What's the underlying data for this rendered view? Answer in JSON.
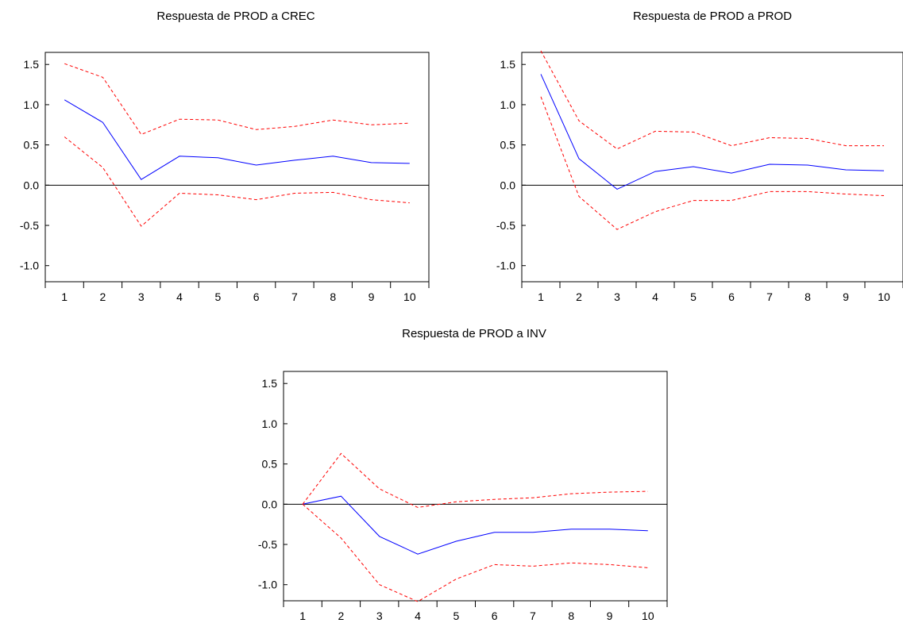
{
  "chart_data": [
    {
      "type": "line",
      "title": "Respuesta de PROD a CREC",
      "xlabel": "",
      "ylabel": "",
      "x": [
        1,
        2,
        3,
        4,
        5,
        6,
        7,
        8,
        9,
        10
      ],
      "xticks": [
        "1",
        "2",
        "3",
        "4",
        "5",
        "6",
        "7",
        "8",
        "9",
        "10"
      ],
      "yticks": [
        "-1.0",
        "-0.5",
        "0.0",
        "0.5",
        "1.0",
        "1.5"
      ],
      "ylim": [
        -1.2,
        1.65
      ],
      "series": [
        {
          "values": [
            1.06,
            0.78,
            0.07,
            0.36,
            0.34,
            0.25,
            0.31,
            0.36,
            0.28,
            0.27
          ],
          "color": "#0000ff",
          "style": "solid"
        },
        {
          "values": [
            1.51,
            1.34,
            0.63,
            0.82,
            0.81,
            0.69,
            0.73,
            0.81,
            0.75,
            0.77
          ],
          "color": "#ff0000",
          "style": "dashed"
        },
        {
          "values": [
            0.6,
            0.22,
            -0.51,
            -0.1,
            -0.12,
            -0.18,
            -0.1,
            -0.09,
            -0.18,
            -0.22
          ],
          "color": "#ff0000",
          "style": "dashed"
        }
      ]
    },
    {
      "type": "line",
      "title": "Respuesta de PROD a PROD",
      "xlabel": "",
      "ylabel": "",
      "x": [
        1,
        2,
        3,
        4,
        5,
        6,
        7,
        8,
        9,
        10
      ],
      "xticks": [
        "1",
        "2",
        "3",
        "4",
        "5",
        "6",
        "7",
        "8",
        "9",
        "10"
      ],
      "yticks": [
        "-1.0",
        "-0.5",
        "0.0",
        "0.5",
        "1.0",
        "1.5"
      ],
      "ylim": [
        -1.2,
        1.65
      ],
      "series": [
        {
          "values": [
            1.38,
            0.33,
            -0.05,
            0.17,
            0.23,
            0.15,
            0.26,
            0.25,
            0.19,
            0.18
          ],
          "color": "#0000ff",
          "style": "solid"
        },
        {
          "values": [
            1.67,
            0.8,
            0.45,
            0.67,
            0.66,
            0.49,
            0.59,
            0.58,
            0.49,
            0.49
          ],
          "color": "#ff0000",
          "style": "dashed"
        },
        {
          "values": [
            1.1,
            -0.14,
            -0.55,
            -0.33,
            -0.19,
            -0.19,
            -0.08,
            -0.08,
            -0.11,
            -0.13
          ],
          "color": "#ff0000",
          "style": "dashed"
        }
      ]
    },
    {
      "type": "line",
      "title": "Respuesta de PROD a INV",
      "xlabel": "",
      "ylabel": "",
      "x": [
        1,
        2,
        3,
        4,
        5,
        6,
        7,
        8,
        9,
        10
      ],
      "xticks": [
        "1",
        "2",
        "3",
        "4",
        "5",
        "6",
        "7",
        "8",
        "9",
        "10"
      ],
      "yticks": [
        "-1.0",
        "-0.5",
        "0.0",
        "0.5",
        "1.0",
        "1.5"
      ],
      "ylim": [
        -1.2,
        1.65
      ],
      "series": [
        {
          "values": [
            0.0,
            0.1,
            -0.4,
            -0.62,
            -0.46,
            -0.35,
            -0.35,
            -0.31,
            -0.31,
            -0.33
          ],
          "color": "#0000ff",
          "style": "solid"
        },
        {
          "values": [
            0.0,
            0.63,
            0.19,
            -0.04,
            0.03,
            0.06,
            0.08,
            0.13,
            0.15,
            0.16
          ],
          "color": "#ff0000",
          "style": "dashed"
        },
        {
          "values": [
            0.0,
            -0.42,
            -1.0,
            -1.21,
            -0.93,
            -0.75,
            -0.77,
            -0.73,
            -0.75,
            -0.79
          ],
          "color": "#ff0000",
          "style": "dashed"
        }
      ]
    }
  ]
}
